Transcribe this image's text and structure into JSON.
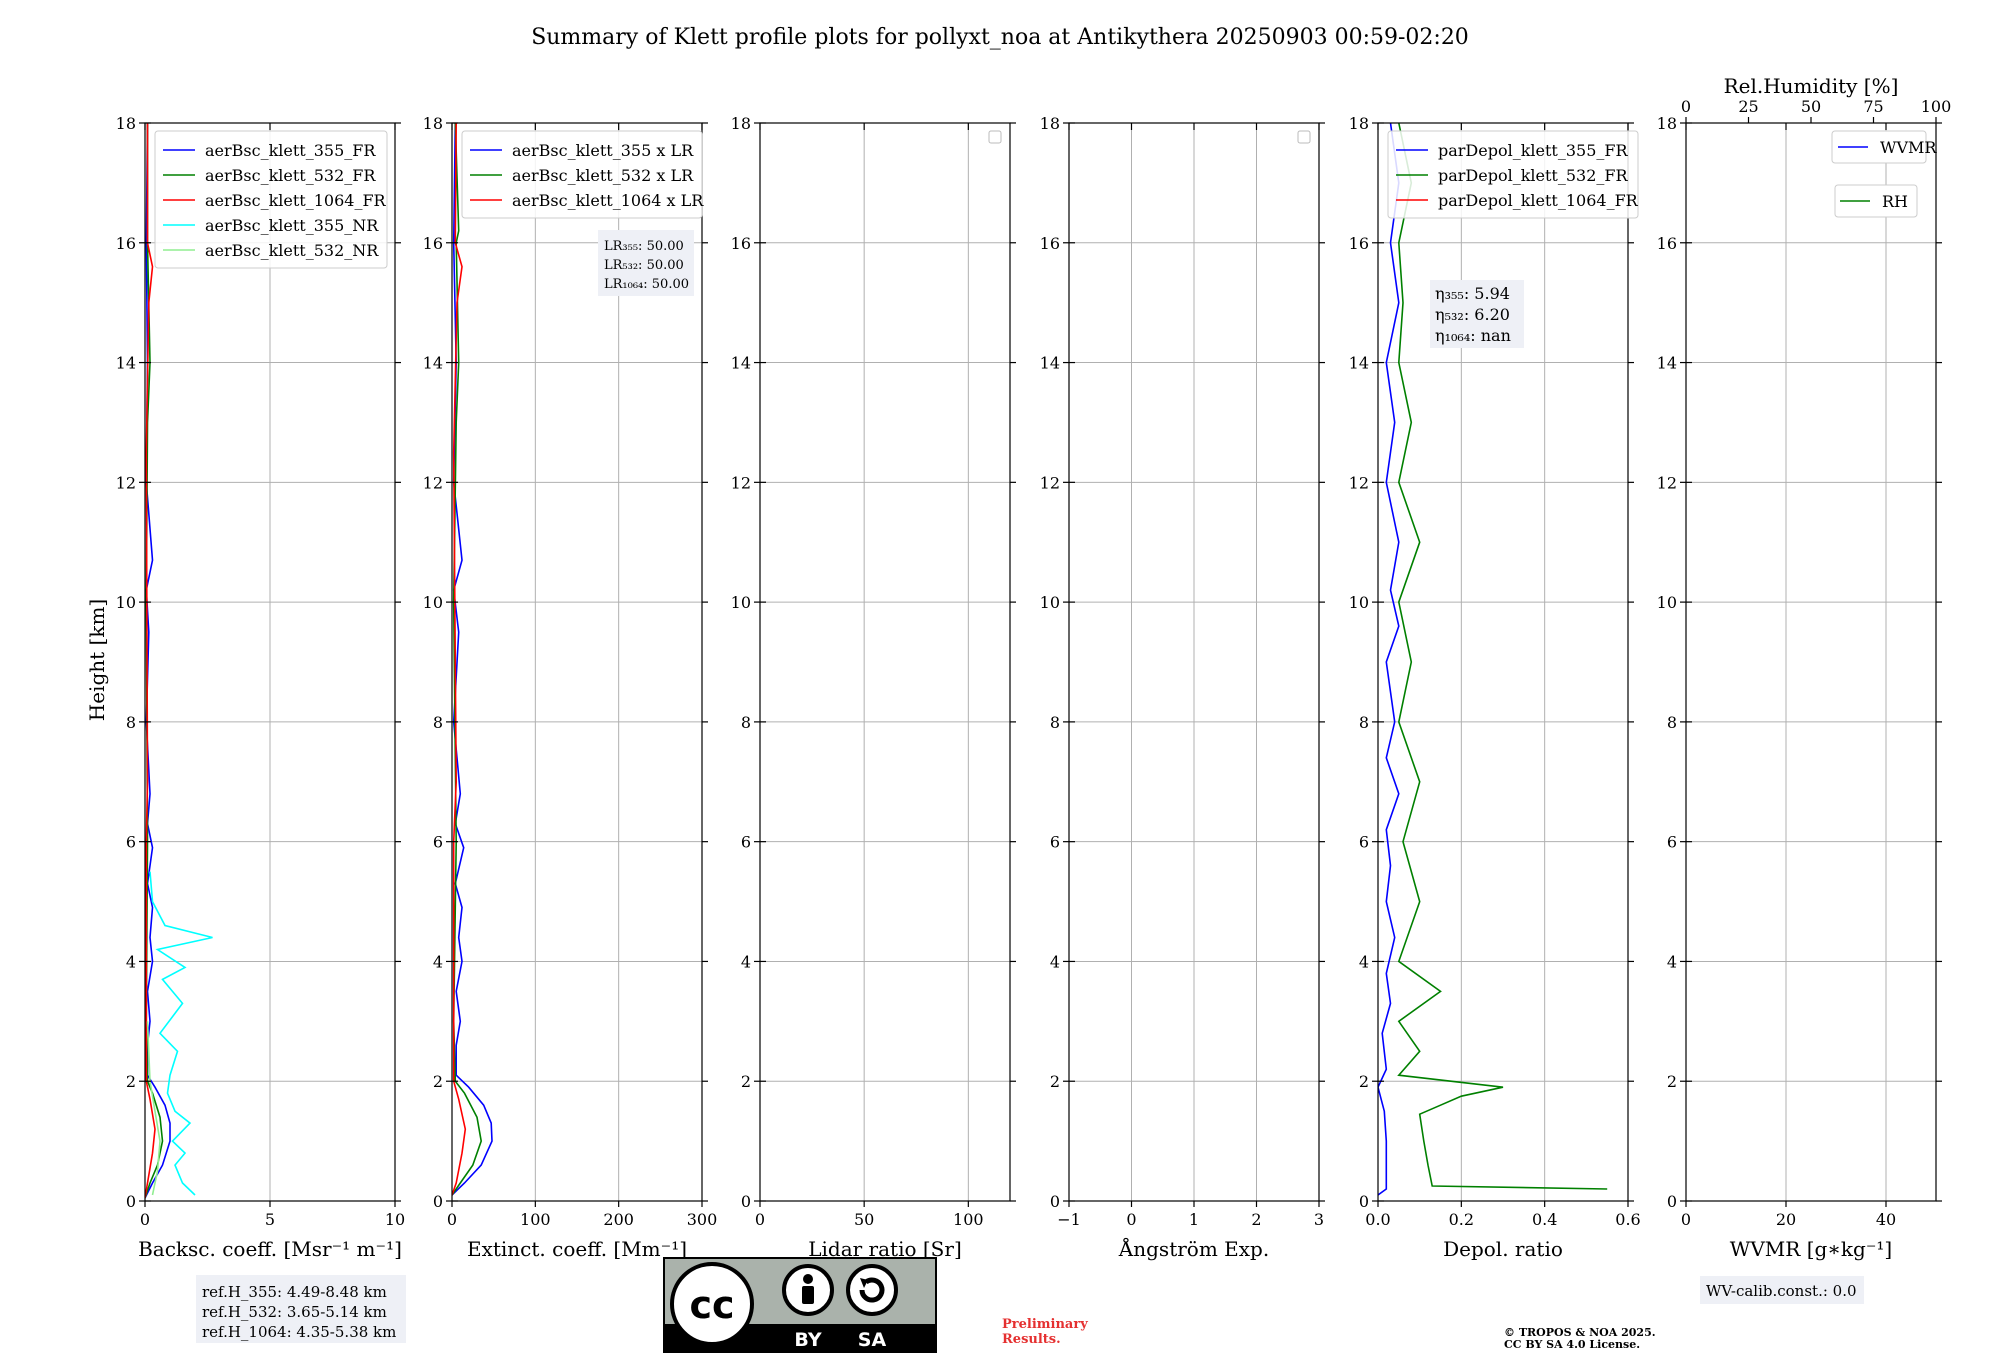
{
  "title": "Summary of Klett profile plots for pollyxt_noa at Antikythera 20250903 00:59-02:20",
  "y_axis_label": "Height [km]",
  "colors": {
    "c355": "#0000ff",
    "c532": "#008000",
    "c1064": "#ff0000",
    "c355nr": "#00ffff",
    "c532nr": "#90ee90",
    "grid": "#b0b0b0",
    "box": "#eef0f6"
  },
  "chart_data": [
    {
      "type": "line",
      "id": "bsc",
      "xlabel": "Backsc. coeff. [Msr⁻¹ m⁻¹]",
      "xlim": [
        0,
        10
      ],
      "ylim": [
        0,
        18
      ],
      "xticks": [
        "0",
        "5",
        "10"
      ],
      "xtick_values": [
        0,
        5,
        10
      ],
      "yticks": [
        "0",
        "2",
        "4",
        "6",
        "8",
        "10",
        "12",
        "14",
        "16",
        "18"
      ],
      "legend": [
        "aerBsc_klett_355_FR",
        "aerBsc_klett_532_FR",
        "aerBsc_klett_1064_FR",
        "aerBsc_klett_355_NR",
        "aerBsc_klett_532_NR"
      ],
      "series": [
        {
          "name": "aerBsc_klett_355_FR",
          "color": "c355",
          "points": [
            [
              0.0,
              0.05
            ],
            [
              0.3,
              0.3
            ],
            [
              0.7,
              0.6
            ],
            [
              1.0,
              1.0
            ],
            [
              1.0,
              1.3
            ],
            [
              0.8,
              1.6
            ],
            [
              0.4,
              1.9
            ],
            [
              0.1,
              2.1
            ],
            [
              0.1,
              2.6
            ],
            [
              0.2,
              3.0
            ],
            [
              0.1,
              3.5
            ],
            [
              0.3,
              4.0
            ],
            [
              0.2,
              4.4
            ],
            [
              0.3,
              4.9
            ],
            [
              0.1,
              5.3
            ],
            [
              0.3,
              5.9
            ],
            [
              0.1,
              6.3
            ],
            [
              0.2,
              6.8
            ],
            [
              0.05,
              8.0
            ],
            [
              0.15,
              9.5
            ],
            [
              0.05,
              10.2
            ],
            [
              0.3,
              10.7
            ],
            [
              0.05,
              12
            ],
            [
              0.1,
              14
            ],
            [
              0.05,
              16
            ],
            [
              0.1,
              18
            ]
          ]
        },
        {
          "name": "aerBsc_klett_532_FR",
          "color": "c532",
          "points": [
            [
              0.0,
              0.05
            ],
            [
              0.2,
              0.3
            ],
            [
              0.5,
              0.6
            ],
            [
              0.7,
              1.0
            ],
            [
              0.6,
              1.4
            ],
            [
              0.3,
              1.8
            ],
            [
              0.1,
              2.0
            ],
            [
              0.05,
              3
            ],
            [
              0.1,
              6
            ],
            [
              0.05,
              10
            ],
            [
              0.1,
              13
            ],
            [
              0.2,
              14
            ],
            [
              0.1,
              16
            ],
            [
              0.1,
              18
            ]
          ]
        },
        {
          "name": "aerBsc_klett_1064_FR",
          "color": "c1064",
          "points": [
            [
              0.0,
              0.05
            ],
            [
              0.1,
              0.3
            ],
            [
              0.3,
              0.8
            ],
            [
              0.4,
              1.2
            ],
            [
              0.2,
              1.7
            ],
            [
              0.05,
              2.0
            ],
            [
              0.05,
              6
            ],
            [
              0.1,
              7
            ],
            [
              0.05,
              12.5
            ],
            [
              0.15,
              15
            ],
            [
              0.3,
              15.6
            ],
            [
              0.1,
              16
            ],
            [
              0.1,
              18
            ]
          ]
        },
        {
          "name": "aerBsc_klett_355_NR",
          "color": "c355nr",
          "points": [
            [
              2.0,
              0.1
            ],
            [
              1.5,
              0.3
            ],
            [
              1.2,
              0.6
            ],
            [
              1.6,
              0.8
            ],
            [
              1.1,
              1.0
            ],
            [
              1.8,
              1.3
            ],
            [
              1.2,
              1.5
            ],
            [
              0.9,
              1.8
            ],
            [
              1.0,
              2.1
            ],
            [
              1.3,
              2.5
            ],
            [
              0.6,
              2.8
            ],
            [
              1.5,
              3.3
            ],
            [
              0.7,
              3.7
            ],
            [
              1.6,
              3.9
            ],
            [
              0.5,
              4.2
            ],
            [
              2.7,
              4.4
            ],
            [
              0.8,
              4.6
            ],
            [
              0.3,
              5.0
            ],
            [
              0.2,
              5.5
            ]
          ]
        },
        {
          "name": "aerBsc_klett_532_NR",
          "color": "c532nr",
          "points": [
            [
              0.3,
              0.1
            ],
            [
              0.5,
              0.5
            ],
            [
              0.6,
              1.0
            ],
            [
              0.4,
              1.5
            ],
            [
              0.2,
              2.0
            ],
            [
              0.1,
              3.0
            ]
          ]
        }
      ]
    },
    {
      "type": "line",
      "id": "ext",
      "xlabel": "Extinct. coeff. [Mm⁻¹]",
      "xlim": [
        0,
        300
      ],
      "ylim": [
        0,
        18
      ],
      "xticks": [
        "0",
        "100",
        "200",
        "300"
      ],
      "xtick_values": [
        0,
        100,
        200,
        300
      ],
      "yticks": [
        "0",
        "2",
        "4",
        "6",
        "8",
        "10",
        "12",
        "14",
        "16",
        "18"
      ],
      "legend": [
        "aerBsc_klett_355 x LR",
        "aerBsc_klett_532 x LR",
        "aerBsc_klett_1064 x LR"
      ],
      "lidar_ratios": [
        "LR₃₅₅: 50.00",
        "LR₅₃₂: 50.00",
        "LR₁₀₆₄: 50.00"
      ],
      "series": [
        {
          "name": "aerBsc_klett_355 x LR",
          "color": "c355",
          "points": [
            [
              0,
              0.1
            ],
            [
              15,
              0.3
            ],
            [
              35,
              0.6
            ],
            [
              48,
              1.0
            ],
            [
              47,
              1.3
            ],
            [
              38,
              1.6
            ],
            [
              20,
              1.9
            ],
            [
              5,
              2.1
            ],
            [
              5,
              2.6
            ],
            [
              10,
              3.0
            ],
            [
              5,
              3.5
            ],
            [
              12,
              4.0
            ],
            [
              8,
              4.4
            ],
            [
              12,
              4.9
            ],
            [
              4,
              5.3
            ],
            [
              14,
              5.9
            ],
            [
              4,
              6.3
            ],
            [
              10,
              6.8
            ],
            [
              2,
              8
            ],
            [
              8,
              9.5
            ],
            [
              2,
              10.2
            ],
            [
              12,
              10.7
            ],
            [
              2,
              12
            ],
            [
              5,
              14
            ],
            [
              2,
              16
            ],
            [
              4,
              18
            ]
          ]
        },
        {
          "name": "aerBsc_klett_532 x LR",
          "color": "c532",
          "points": [
            [
              0,
              0.1
            ],
            [
              10,
              0.3
            ],
            [
              25,
              0.6
            ],
            [
              35,
              1.0
            ],
            [
              30,
              1.4
            ],
            [
              15,
              1.8
            ],
            [
              4,
              2.0
            ],
            [
              2,
              3
            ],
            [
              5,
              6
            ],
            [
              2,
              10
            ],
            [
              5,
              13
            ],
            [
              8,
              14
            ],
            [
              5,
              16
            ],
            [
              8,
              16.2
            ],
            [
              4,
              18
            ]
          ]
        },
        {
          "name": "aerBsc_klett_1064 x LR",
          "color": "c1064",
          "points": [
            [
              0,
              0.1
            ],
            [
              5,
              0.3
            ],
            [
              12,
              0.8
            ],
            [
              16,
              1.2
            ],
            [
              8,
              1.7
            ],
            [
              2,
              2.0
            ],
            [
              2,
              6
            ],
            [
              5,
              7
            ],
            [
              2,
              12.5
            ],
            [
              6,
              15
            ],
            [
              12,
              15.6
            ],
            [
              4,
              16
            ],
            [
              5,
              18
            ]
          ]
        }
      ]
    },
    {
      "type": "line",
      "id": "lr",
      "xlabel": "Lidar ratio [Sr]",
      "xlim": [
        0,
        120
      ],
      "ylim": [
        0,
        18
      ],
      "xticks": [
        "0",
        "50",
        "100"
      ],
      "xtick_values": [
        0,
        50,
        100
      ],
      "yticks": [
        "0",
        "2",
        "4",
        "6",
        "8",
        "10",
        "12",
        "14",
        "16",
        "18"
      ],
      "series": []
    },
    {
      "type": "line",
      "id": "ang",
      "xlabel": "Ångström Exp.",
      "xlim": [
        -1,
        3
      ],
      "ylim": [
        0,
        18
      ],
      "xticks": [
        "−1",
        "0",
        "1",
        "2",
        "3"
      ],
      "xtick_values": [
        -1,
        0,
        1,
        2,
        3
      ],
      "yticks": [
        "0",
        "2",
        "4",
        "6",
        "8",
        "10",
        "12",
        "14",
        "16",
        "18"
      ],
      "series": []
    },
    {
      "type": "line",
      "id": "depol",
      "xlabel": "Depol. ratio",
      "xlim": [
        0,
        0.6
      ],
      "ylim": [
        0,
        18
      ],
      "xticks": [
        "0.0",
        "0.2",
        "0.4",
        "0.6"
      ],
      "xtick_values": [
        0,
        0.2,
        0.4,
        0.6
      ],
      "yticks": [
        "0",
        "2",
        "4",
        "6",
        "8",
        "10",
        "12",
        "14",
        "16",
        "18"
      ],
      "legend": [
        "parDepol_klett_355_FR",
        "parDepol_klett_532_FR",
        "parDepol_klett_1064_FR"
      ],
      "eta": [
        "η₃₅₅: 5.94",
        "η₅₃₂: 6.20",
        "η₁₀₆₄: nan"
      ],
      "series": [
        {
          "name": "parDepol_klett_355_FR",
          "color": "c355",
          "points": [
            [
              0.0,
              0.1
            ],
            [
              0.02,
              0.2
            ],
            [
              0.02,
              0.6
            ],
            [
              0.02,
              1.0
            ],
            [
              0.015,
              1.5
            ],
            [
              0.0,
              1.9
            ],
            [
              0.02,
              2.2
            ],
            [
              0.01,
              2.8
            ],
            [
              0.03,
              3.3
            ],
            [
              0.02,
              3.8
            ],
            [
              0.04,
              4.4
            ],
            [
              0.02,
              5.0
            ],
            [
              0.03,
              5.6
            ],
            [
              0.02,
              6.2
            ],
            [
              0.05,
              6.8
            ],
            [
              0.02,
              7.4
            ],
            [
              0.04,
              8.0
            ],
            [
              0.02,
              9.0
            ],
            [
              0.05,
              9.6
            ],
            [
              0.03,
              10.2
            ],
            [
              0.05,
              11
            ],
            [
              0.02,
              12
            ],
            [
              0.04,
              13
            ],
            [
              0.02,
              14
            ],
            [
              0.05,
              15
            ],
            [
              0.03,
              16
            ],
            [
              0.05,
              17
            ],
            [
              0.03,
              18
            ]
          ]
        },
        {
          "name": "parDepol_klett_532_FR",
          "color": "c532",
          "points": [
            [
              0.55,
              0.2
            ],
            [
              0.13,
              0.25
            ],
            [
              0.12,
              0.6
            ],
            [
              0.11,
              1.0
            ],
            [
              0.1,
              1.45
            ],
            [
              0.15,
              1.6
            ],
            [
              0.2,
              1.75
            ],
            [
              0.3,
              1.9
            ],
            [
              0.05,
              2.1
            ],
            [
              0.1,
              2.5
            ],
            [
              0.05,
              3.0
            ],
            [
              0.15,
              3.5
            ],
            [
              0.05,
              4.0
            ],
            [
              0.1,
              5.0
            ],
            [
              0.06,
              6.0
            ],
            [
              0.1,
              7.0
            ],
            [
              0.05,
              8.0
            ],
            [
              0.08,
              9.0
            ],
            [
              0.05,
              10.0
            ],
            [
              0.1,
              11
            ],
            [
              0.05,
              12
            ],
            [
              0.08,
              13
            ],
            [
              0.05,
              14
            ],
            [
              0.06,
              15
            ],
            [
              0.05,
              16
            ],
            [
              0.08,
              17
            ],
            [
              0.05,
              18
            ]
          ]
        },
        {
          "name": "parDepol_klett_1064_FR",
          "color": "c1064",
          "points": []
        }
      ]
    },
    {
      "type": "line",
      "id": "wv",
      "xlabel": "WVMR [g∗kg⁻¹]",
      "xlim": [
        0,
        50
      ],
      "ylim": [
        0,
        18
      ],
      "xticks": [
        "0",
        "20",
        "40"
      ],
      "xtick_values": [
        0,
        20,
        40
      ],
      "yticks": [
        "0",
        "2",
        "4",
        "6",
        "8",
        "10",
        "12",
        "14",
        "16",
        "18"
      ],
      "top_xlabel": "Rel.Humidity [%]",
      "top_xticks": [
        "0",
        "25",
        "50",
        "75",
        "100"
      ],
      "top_xtick_values": [
        0,
        25,
        50,
        75,
        100
      ],
      "legend": [
        "WVMR",
        "RH"
      ],
      "series": []
    }
  ],
  "boxes": {
    "ref_heights": [
      "ref.H_355: 4.49-8.48 km",
      "ref.H_532: 3.65-5.14 km",
      "ref.H_1064: 4.35-5.38 km"
    ],
    "wv_calib": "WV-calib.const.: 0.0",
    "preliminary": [
      "Preliminary",
      "Results."
    ],
    "copyright": [
      "© TROPOS & NOA 2025.",
      "CC BY SA 4.0 License."
    ],
    "license_logo": {
      "cc": "cc",
      "by": "BY",
      "sa": "SA"
    }
  }
}
